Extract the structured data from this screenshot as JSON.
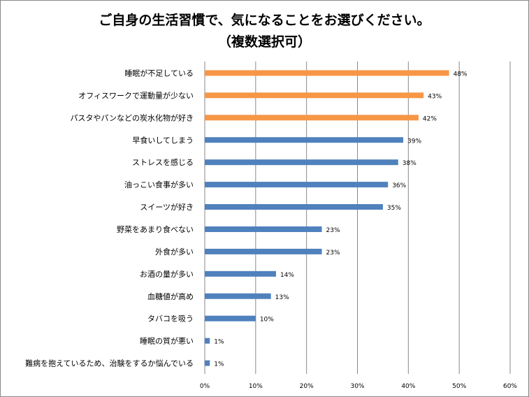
{
  "chart_data": {
    "type": "bar",
    "orientation": "horizontal",
    "title": [
      "ご自身の生活習慣で、気になることをお選びください。",
      "（複数選択可）"
    ],
    "categories": [
      "睡眠が不足している",
      "オフィスワークで運動量が少ない",
      "パスタやパンなどの炭水化物が好き",
      "早食いしてしまう",
      "ストレスを感じる",
      "油っこい食事が多い",
      "スイーツが好き",
      "野菜をあまり食べない",
      "外食が多い",
      "お酒の量が多い",
      "血糖値が高め",
      "タバコを吸う",
      "睡眠の質が悪い",
      "難病を抱えているため、治験をするか悩んでいる"
    ],
    "values": [
      48,
      43,
      42,
      39,
      38,
      36,
      35,
      23,
      23,
      14,
      13,
      10,
      1,
      1
    ],
    "value_labels": [
      "48%",
      "43%",
      "42%",
      "39%",
      "38%",
      "36%",
      "35%",
      "23%",
      "23%",
      "14%",
      "13%",
      "10%",
      "1%",
      "1%"
    ],
    "highlight": [
      true,
      true,
      true,
      false,
      false,
      false,
      false,
      false,
      false,
      false,
      false,
      false,
      false,
      false
    ],
    "xlim": [
      0,
      60
    ],
    "xticks": [
      "0%",
      "10%",
      "20%",
      "30%",
      "40%",
      "50%",
      "60%"
    ],
    "grid": true,
    "legend": "none",
    "colors": {
      "highlight": "#F79646",
      "default": "#4F81BD",
      "grid": "#888888"
    }
  }
}
